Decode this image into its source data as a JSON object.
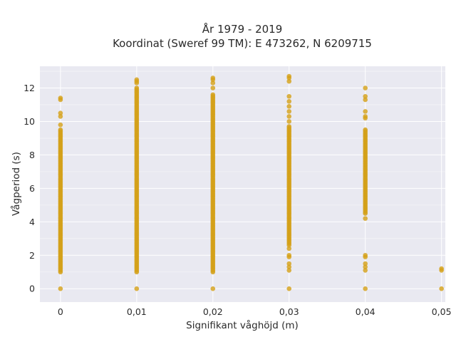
{
  "chart_data": {
    "type": "scatter",
    "title_line1": "År 1979 - 2019",
    "title_line2": "Koordinat (Sweref 99 TM): E 473262, N 6209715",
    "xlabel": "Signifikant våghöjd (m)",
    "ylabel": "Vågperiod (s)",
    "xlim": [
      -0.0027,
      0.0505
    ],
    "ylim": [
      -0.8,
      13.3
    ],
    "x_ticks": [
      {
        "value": 0,
        "label": "0"
      },
      {
        "value": 0.01,
        "label": "0,01"
      },
      {
        "value": 0.02,
        "label": "0,02"
      },
      {
        "value": 0.03,
        "label": "0,03"
      },
      {
        "value": 0.04,
        "label": "0,04"
      },
      {
        "value": 0.05,
        "label": "0,05"
      }
    ],
    "y_ticks": [
      {
        "value": 0,
        "label": "0"
      },
      {
        "value": 2,
        "label": "2"
      },
      {
        "value": 4,
        "label": "4"
      },
      {
        "value": 6,
        "label": "6"
      },
      {
        "value": 8,
        "label": "8"
      },
      {
        "value": 10,
        "label": "10"
      },
      {
        "value": 12,
        "label": "12"
      }
    ],
    "grid": true,
    "colors": {
      "marker": "#d4a017",
      "plot_background": "#e9e9f1",
      "grid": "#ffffff"
    },
    "series": [
      {
        "dense_ranges": [
          {
            "x": 0,
            "y_from": 1.0,
            "y_to": 9.5
          },
          {
            "x": 0.01,
            "y_from": 1.0,
            "y_to": 12.0
          },
          {
            "x": 0.02,
            "y_from": 1.0,
            "y_to": 11.6
          },
          {
            "x": 0.03,
            "y_from": 2.7,
            "y_to": 9.7
          },
          {
            "x": 0.04,
            "y_from": 4.5,
            "y_to": 9.5
          }
        ],
        "points": [
          {
            "x": 0,
            "y": 0
          },
          {
            "x": 0,
            "y": 9.8
          },
          {
            "x": 0,
            "y": 10.3
          },
          {
            "x": 0,
            "y": 10.5
          },
          {
            "x": 0,
            "y": 11.3
          },
          {
            "x": 0,
            "y": 11.4
          },
          {
            "x": 0.01,
            "y": 0
          },
          {
            "x": 0.01,
            "y": 12.3
          },
          {
            "x": 0.01,
            "y": 12.4
          },
          {
            "x": 0.01,
            "y": 12.5
          },
          {
            "x": 0.02,
            "y": 0
          },
          {
            "x": 0.02,
            "y": 12.0
          },
          {
            "x": 0.02,
            "y": 12.3
          },
          {
            "x": 0.02,
            "y": 12.5
          },
          {
            "x": 0.02,
            "y": 12.6
          },
          {
            "x": 0.03,
            "y": 0
          },
          {
            "x": 0.03,
            "y": 1.1
          },
          {
            "x": 0.03,
            "y": 1.3
          },
          {
            "x": 0.03,
            "y": 1.5
          },
          {
            "x": 0.03,
            "y": 1.9
          },
          {
            "x": 0.03,
            "y": 2.0
          },
          {
            "x": 0.03,
            "y": 2.4
          },
          {
            "x": 0.03,
            "y": 2.6
          },
          {
            "x": 0.03,
            "y": 10.0
          },
          {
            "x": 0.03,
            "y": 10.3
          },
          {
            "x": 0.03,
            "y": 10.6
          },
          {
            "x": 0.03,
            "y": 10.9
          },
          {
            "x": 0.03,
            "y": 11.2
          },
          {
            "x": 0.03,
            "y": 11.5
          },
          {
            "x": 0.03,
            "y": 12.4
          },
          {
            "x": 0.03,
            "y": 12.6
          },
          {
            "x": 0.03,
            "y": 12.7
          },
          {
            "x": 0.04,
            "y": 0
          },
          {
            "x": 0.04,
            "y": 1.1
          },
          {
            "x": 0.04,
            "y": 1.3
          },
          {
            "x": 0.04,
            "y": 1.5
          },
          {
            "x": 0.04,
            "y": 1.9
          },
          {
            "x": 0.04,
            "y": 2.0
          },
          {
            "x": 0.04,
            "y": 4.2
          },
          {
            "x": 0.04,
            "y": 10.2
          },
          {
            "x": 0.04,
            "y": 10.3
          },
          {
            "x": 0.04,
            "y": 10.6
          },
          {
            "x": 0.04,
            "y": 11.3
          },
          {
            "x": 0.04,
            "y": 11.5
          },
          {
            "x": 0.04,
            "y": 12.0
          },
          {
            "x": 0.05,
            "y": 0
          },
          {
            "x": 0.05,
            "y": 1.1
          },
          {
            "x": 0.05,
            "y": 1.2
          }
        ]
      }
    ]
  }
}
